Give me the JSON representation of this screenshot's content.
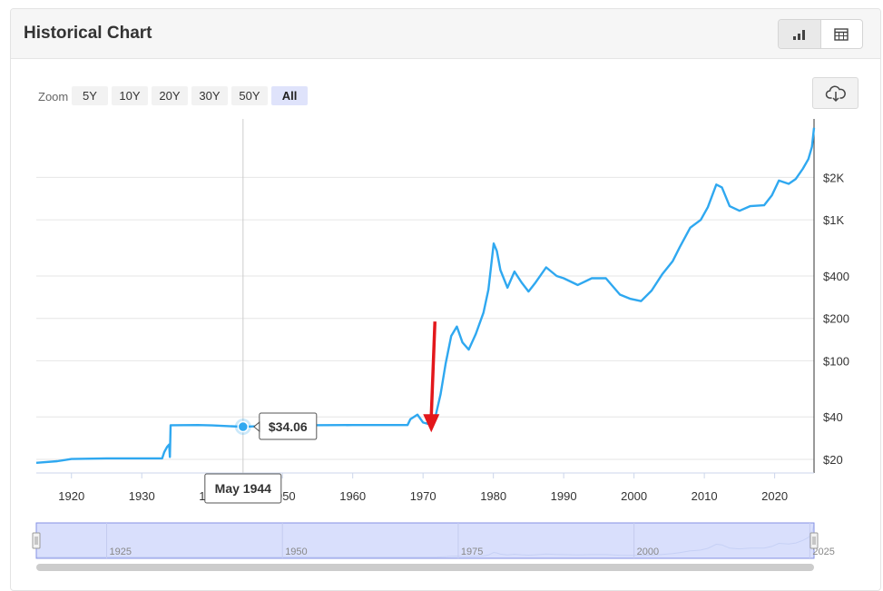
{
  "header": {
    "title": "Historical Chart"
  },
  "view_toggle": {
    "chart_icon": "bar-chart-icon",
    "table_icon": "table-icon",
    "active": "chart"
  },
  "zoom": {
    "label": "Zoom",
    "buttons": [
      "5Y",
      "10Y",
      "20Y",
      "30Y",
      "50Y",
      "All"
    ],
    "active": "All"
  },
  "download": {
    "icon": "cloud-download-icon"
  },
  "tooltip": {
    "value": "$34.06",
    "date": "May 1944"
  },
  "navigator": {
    "labels": [
      "1925",
      "1950",
      "1975",
      "2000",
      "2025"
    ]
  },
  "colors": {
    "line": "#2fa8f0",
    "arrow": "#e3171b",
    "navigator_fill": "#d0d7fb",
    "navigator_border": "#8592e3"
  },
  "chart_data": {
    "type": "line",
    "y_scale": "log",
    "grid": true,
    "legend": "none",
    "xlim": [
      1915,
      2025.6
    ],
    "ylim": [
      16,
      5200
    ],
    "x_ticks": [
      {
        "x": 1920,
        "label": "1920"
      },
      {
        "x": 1930,
        "label": "1930"
      },
      {
        "x": 1940,
        "label": "1940"
      },
      {
        "x": 1950,
        "label": "1950"
      },
      {
        "x": 1960,
        "label": "1960"
      },
      {
        "x": 1970,
        "label": "1970"
      },
      {
        "x": 1980,
        "label": "1980"
      },
      {
        "x": 1990,
        "label": "1990"
      },
      {
        "x": 2000,
        "label": "2000"
      },
      {
        "x": 2010,
        "label": "2010"
      },
      {
        "x": 2020,
        "label": "2020"
      }
    ],
    "y_ticks": [
      {
        "y": 20,
        "label": "$20"
      },
      {
        "y": 40,
        "label": "$40"
      },
      {
        "y": 100,
        "label": "$100"
      },
      {
        "y": 200,
        "label": "$200"
      },
      {
        "y": 400,
        "label": "$400"
      },
      {
        "y": 1000,
        "label": "$1K"
      },
      {
        "y": 2000,
        "label": "$2K"
      }
    ],
    "highlight": {
      "x": 1944.4,
      "y": 34.06,
      "label": "$34.06",
      "date": "May 1944"
    },
    "annotation": {
      "type": "arrow",
      "x": 1971.3,
      "y_from": 190,
      "y_to": 32
    },
    "series": [
      {
        "points": [
          [
            1915,
            18.9
          ],
          [
            1918,
            19.4
          ],
          [
            1920,
            20.1
          ],
          [
            1925,
            20.3
          ],
          [
            1930,
            20.3
          ],
          [
            1932.9,
            20.3
          ],
          [
            1933.2,
            22.5
          ],
          [
            1933.6,
            24.5
          ],
          [
            1933.9,
            25.5
          ],
          [
            1934.0,
            20.8
          ],
          [
            1934.1,
            34.9
          ],
          [
            1938,
            35.0
          ],
          [
            1940,
            34.8
          ],
          [
            1944.4,
            34.06
          ],
          [
            1950,
            34.8
          ],
          [
            1960,
            35.0
          ],
          [
            1967.8,
            35.0
          ],
          [
            1968.2,
            38.5
          ],
          [
            1969.2,
            41.5
          ],
          [
            1970.0,
            36.5
          ],
          [
            1970.9,
            35.5
          ],
          [
            1971.8,
            41.0
          ],
          [
            1972.5,
            58.0
          ],
          [
            1973.2,
            95.0
          ],
          [
            1974.0,
            150.0
          ],
          [
            1974.8,
            175.0
          ],
          [
            1975.6,
            135.0
          ],
          [
            1976.5,
            120.0
          ],
          [
            1977.5,
            155.0
          ],
          [
            1978.6,
            220.0
          ],
          [
            1979.3,
            320.0
          ],
          [
            1980.05,
            680.0
          ],
          [
            1980.5,
            600.0
          ],
          [
            1981.0,
            440.0
          ],
          [
            1982.0,
            330.0
          ],
          [
            1983.0,
            430.0
          ],
          [
            1984.0,
            360.0
          ],
          [
            1985.0,
            310.0
          ],
          [
            1986.0,
            360.0
          ],
          [
            1987.5,
            460.0
          ],
          [
            1989.0,
            400.0
          ],
          [
            1990.0,
            385.0
          ],
          [
            1992.0,
            345.0
          ],
          [
            1994.0,
            385.0
          ],
          [
            1996.0,
            385.0
          ],
          [
            1998.0,
            295.0
          ],
          [
            1999.5,
            275.0
          ],
          [
            2001.0,
            265.0
          ],
          [
            2002.5,
            315.0
          ],
          [
            2004.0,
            410.0
          ],
          [
            2005.5,
            510.0
          ],
          [
            2006.5,
            640.0
          ],
          [
            2008.0,
            880.0
          ],
          [
            2009.5,
            1000.0
          ],
          [
            2010.5,
            1230.0
          ],
          [
            2011.7,
            1780.0
          ],
          [
            2012.5,
            1700.0
          ],
          [
            2013.6,
            1250.0
          ],
          [
            2015.0,
            1160.0
          ],
          [
            2016.5,
            1250.0
          ],
          [
            2018.5,
            1270.0
          ],
          [
            2019.6,
            1490.0
          ],
          [
            2020.6,
            1900.0
          ],
          [
            2022.0,
            1800.0
          ],
          [
            2023.0,
            1950.0
          ],
          [
            2024.0,
            2300.0
          ],
          [
            2024.8,
            2700.0
          ],
          [
            2025.3,
            3300.0
          ],
          [
            2025.6,
            4500.0
          ]
        ]
      }
    ]
  }
}
